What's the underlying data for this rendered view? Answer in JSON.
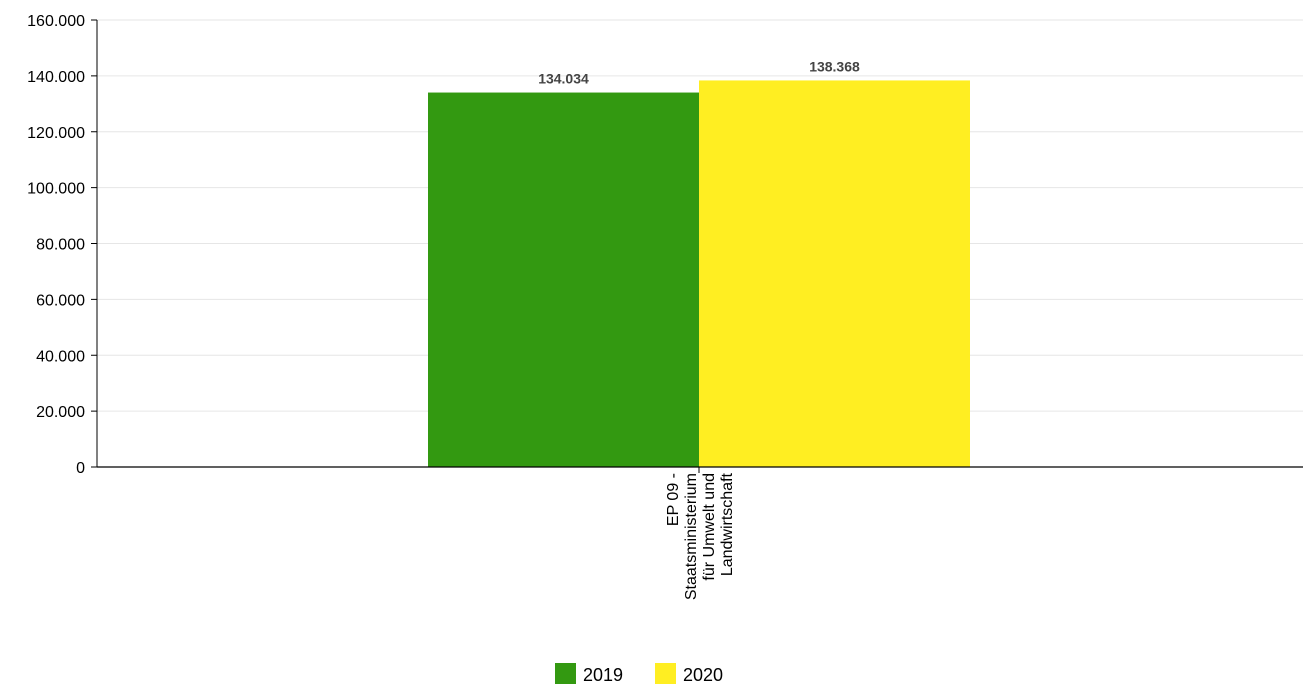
{
  "chart_data": {
    "type": "bar",
    "categories": [
      "EP 09 - Staatsministerium für Umwelt und Landwirtschaft"
    ],
    "category_label_lines": [
      "EP 09 -",
      "Staatsministerium",
      "für Umwelt und",
      "Landwirtschaft"
    ],
    "series": [
      {
        "name": "2019",
        "values": [
          134034
        ],
        "value_labels": [
          "134.034"
        ],
        "color": "#339911"
      },
      {
        "name": "2020",
        "values": [
          138368
        ],
        "value_labels": [
          "138.368"
        ],
        "color": "#ffee22"
      }
    ],
    "ylim": [
      0,
      160000
    ],
    "yticks": [
      0,
      20000,
      40000,
      60000,
      80000,
      100000,
      120000,
      140000,
      160000
    ],
    "ytick_labels": [
      "0",
      "20.000",
      "40.000",
      "60.000",
      "80.000",
      "100.000",
      "120.000",
      "140.000",
      "160.000"
    ],
    "title": "",
    "xlabel": "",
    "ylabel": "",
    "grid": true,
    "legend_position": "bottom-center",
    "colors": {
      "grid": "#e6e6e6",
      "axis": "#000000"
    }
  }
}
